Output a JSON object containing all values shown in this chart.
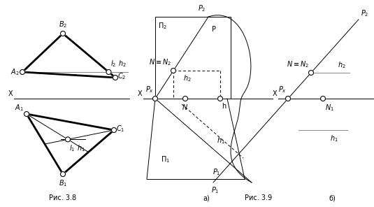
{
  "fig_width": 5.35,
  "fig_height": 2.96,
  "bg_color": "#ffffff",
  "caption38": "Рис. 3.8",
  "caption39": "Рис. 3.9",
  "caption_a": "а)",
  "caption_b": "б)"
}
